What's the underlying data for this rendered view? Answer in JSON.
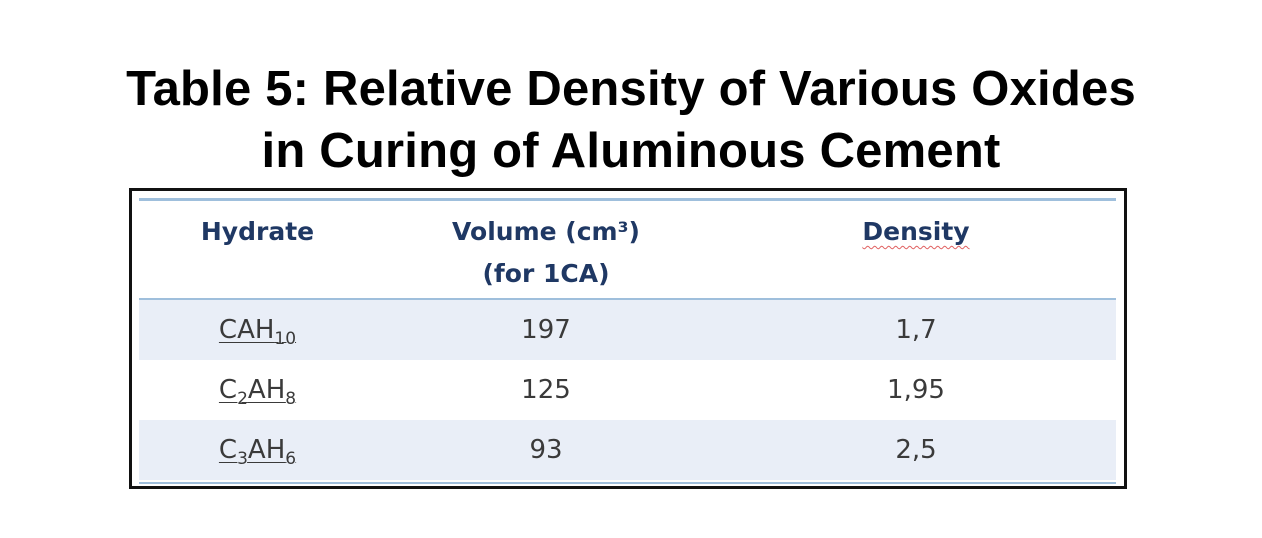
{
  "title": {
    "line1": "Table 5: Relative Density of Various Oxides",
    "line2": "in Curing of Aluminous Cement"
  },
  "table": {
    "headers": {
      "hydrate": "Hydrate",
      "volume_line1": "Volume (cm³)",
      "volume_line2": "(for 1CA)",
      "density": "Density"
    },
    "rows": [
      {
        "hydrate": {
          "p1": "CAH",
          "s1": "10",
          "p2": "",
          "s2": "",
          "p3": "",
          "s3": ""
        },
        "volume": "197",
        "density": "1,7"
      },
      {
        "hydrate": {
          "p1": "C",
          "s1": "2",
          "p2": "AH",
          "s2": "8",
          "p3": "",
          "s3": ""
        },
        "volume": "125",
        "density": "1,95"
      },
      {
        "hydrate": {
          "p1": "C",
          "s1": "3",
          "p2": "AH",
          "s2": "6",
          "p3": "",
          "s3": ""
        },
        "volume": "93",
        "density": "2,5"
      }
    ]
  },
  "colors": {
    "header_text": "#1f3864",
    "row_band": "#e9eef7",
    "rule": "#9fbfdc",
    "frame": "#111111"
  }
}
